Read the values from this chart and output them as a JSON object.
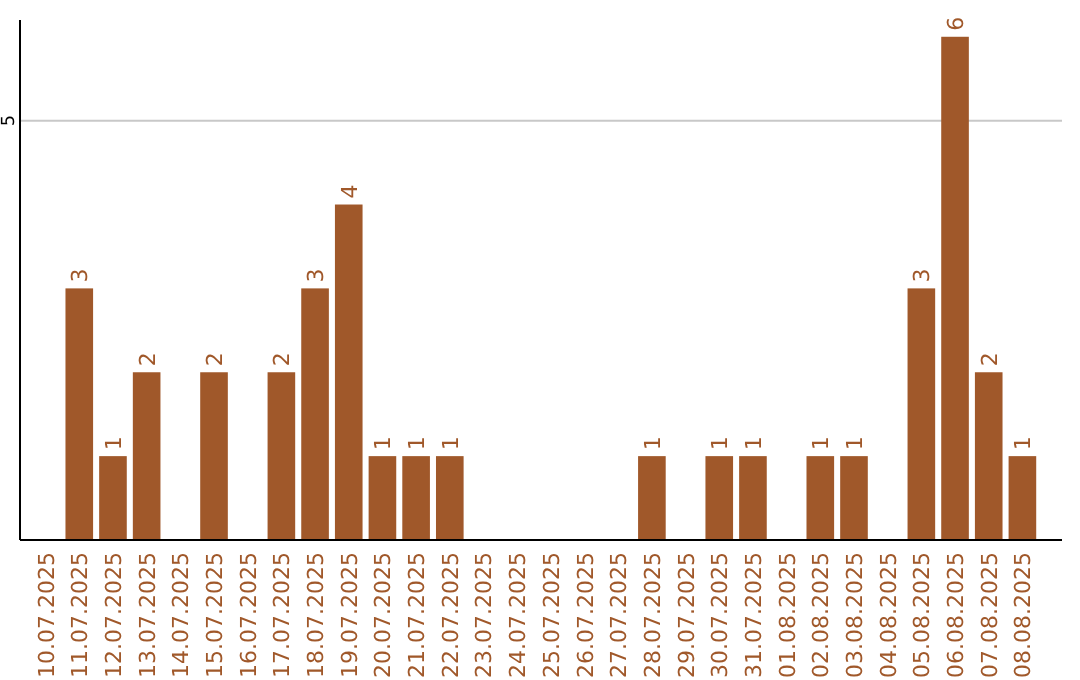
{
  "chart_data": {
    "type": "bar",
    "categories": [
      "10.07.2025",
      "11.07.2025",
      "12.07.2025",
      "13.07.2025",
      "14.07.2025",
      "15.07.2025",
      "16.07.2025",
      "17.07.2025",
      "18.07.2025",
      "19.07.2025",
      "20.07.2025",
      "21.07.2025",
      "22.07.2025",
      "23.07.2025",
      "24.07.2025",
      "25.07.2025",
      "26.07.2025",
      "27.07.2025",
      "28.07.2025",
      "29.07.2025",
      "30.07.2025",
      "31.07.2025",
      "01.08.2025",
      "02.08.2025",
      "03.08.2025",
      "04.08.2025",
      "05.08.2025",
      "06.08.2025",
      "07.08.2025",
      "08.08.2025"
    ],
    "values": [
      0,
      3,
      1,
      2,
      0,
      2,
      0,
      2,
      3,
      4,
      1,
      1,
      1,
      0,
      0,
      0,
      0,
      0,
      1,
      0,
      1,
      1,
      0,
      1,
      1,
      0,
      3,
      6,
      2,
      1
    ],
    "value_labels": [
      null,
      "3",
      "1",
      "2",
      null,
      "2",
      null,
      "2",
      "3",
      "4",
      "1",
      "1",
      "1",
      null,
      null,
      null,
      null,
      null,
      "1",
      null,
      "1",
      "1",
      null,
      "1",
      "1",
      null,
      "3",
      "6",
      "2",
      "1"
    ],
    "color": "#a0582a",
    "ylim": [
      0,
      6.2
    ],
    "yticks": [
      5
    ],
    "grid": "y"
  }
}
